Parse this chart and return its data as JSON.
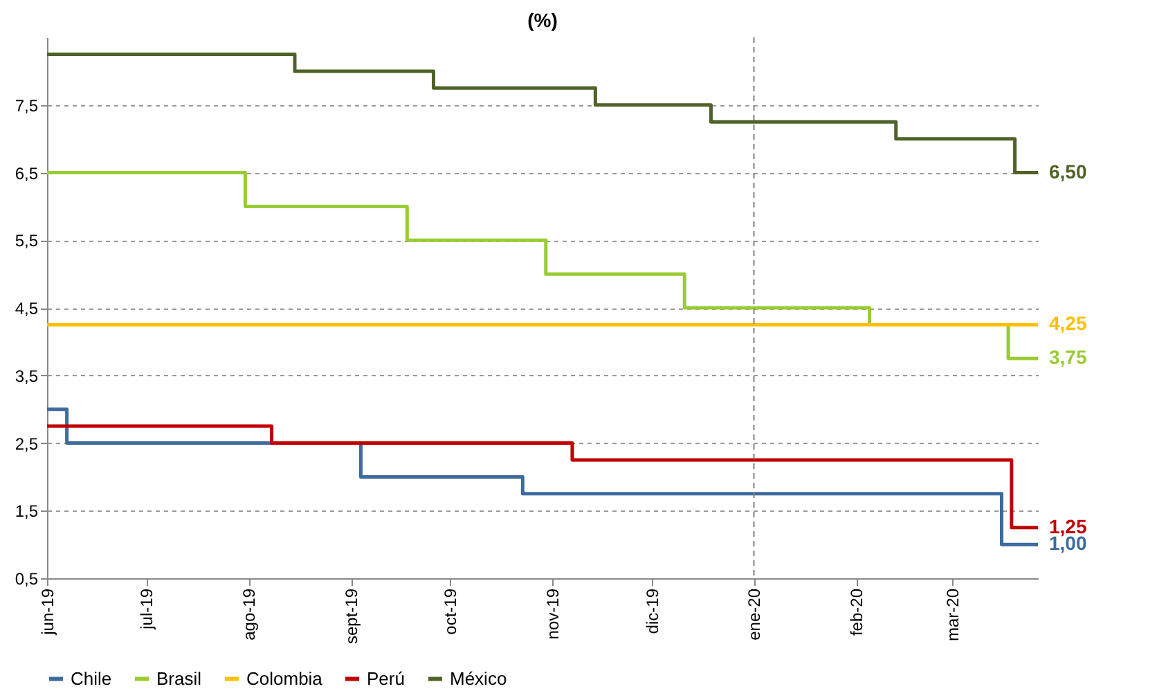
{
  "chart_data": {
    "type": "step",
    "title": "(%)",
    "xlim": [
      "2019-06-01",
      "2020-03-27"
    ],
    "xticks": [
      {
        "value": "2019-06-01",
        "label": "jun-19"
      },
      {
        "value": "2019-07-01",
        "label": "jul-19"
      },
      {
        "value": "2019-08-01",
        "label": "ago-19"
      },
      {
        "value": "2019-09-01",
        "label": "sept-19"
      },
      {
        "value": "2019-10-01",
        "label": "oct-19"
      },
      {
        "value": "2019-11-01",
        "label": "nov-19"
      },
      {
        "value": "2019-12-01",
        "label": "dic-19"
      },
      {
        "value": "2020-01-01",
        "label": "ene-20"
      },
      {
        "value": "2020-02-01",
        "label": "feb-20"
      },
      {
        "value": "2020-03-01",
        "label": "mar-20"
      }
    ],
    "ylim": [
      0.5,
      8.5
    ],
    "yticks": [
      {
        "value": 0.5,
        "label": "0,5"
      },
      {
        "value": 1.5,
        "label": "1,5"
      },
      {
        "value": 2.5,
        "label": "2,5"
      },
      {
        "value": 3.5,
        "label": "3,5"
      },
      {
        "value": 4.5,
        "label": "4,5"
      },
      {
        "value": 5.5,
        "label": "5,5"
      },
      {
        "value": 6.5,
        "label": "6,5"
      },
      {
        "value": 7.5,
        "label": "7,5"
      }
    ],
    "grid": "y",
    "legend": "bottom",
    "ref_lines": [
      {
        "axis": "x",
        "value": "2020-01-01",
        "color": "#808080",
        "line_style": "dashed"
      }
    ],
    "series": [
      {
        "name": "Chile",
        "color": "#3d6b9e",
        "x": [
          "2019-06-01",
          "2019-06-07",
          "2019-09-04",
          "2019-10-23",
          "2020-03-16",
          "2020-03-27"
        ],
        "values": [
          3.0,
          2.5,
          2.0,
          1.75,
          1.0,
          1.0
        ],
        "value_labels": [
          null,
          null,
          null,
          null,
          null,
          "1,00"
        ]
      },
      {
        "name": "Brasil",
        "color": "#99cc33",
        "x": [
          "2019-06-01",
          "2019-07-31",
          "2019-09-18",
          "2019-10-30",
          "2019-12-11",
          "2020-02-05",
          "2020-03-18",
          "2020-03-27"
        ],
        "values": [
          6.5,
          6.0,
          5.5,
          5.0,
          4.5,
          4.25,
          3.75,
          3.75
        ],
        "value_labels": [
          null,
          null,
          null,
          null,
          null,
          null,
          null,
          "3,75"
        ]
      },
      {
        "name": "Colombia",
        "color": "#ffc000",
        "x": [
          "2019-06-01",
          "2020-03-27"
        ],
        "values": [
          4.25,
          4.25
        ],
        "value_labels": [
          null,
          "4,25"
        ]
      },
      {
        "name": "Perú",
        "color": "#c00000",
        "x": [
          "2019-06-01",
          "2019-08-08",
          "2019-11-07",
          "2020-03-19",
          "2020-03-27"
        ],
        "values": [
          2.75,
          2.5,
          2.25,
          1.25,
          1.25
        ],
        "value_labels": [
          null,
          null,
          null,
          null,
          "1,25"
        ]
      },
      {
        "name": "México",
        "color": "#4f6228",
        "x": [
          "2019-06-01",
          "2019-08-15",
          "2019-09-26",
          "2019-11-14",
          "2019-12-19",
          "2020-02-13",
          "2020-03-20",
          "2020-03-27"
        ],
        "values": [
          8.25,
          8.0,
          7.75,
          7.5,
          7.25,
          7.0,
          6.5,
          6.5
        ],
        "value_labels": [
          null,
          null,
          null,
          null,
          null,
          null,
          null,
          "6,50"
        ]
      }
    ]
  }
}
